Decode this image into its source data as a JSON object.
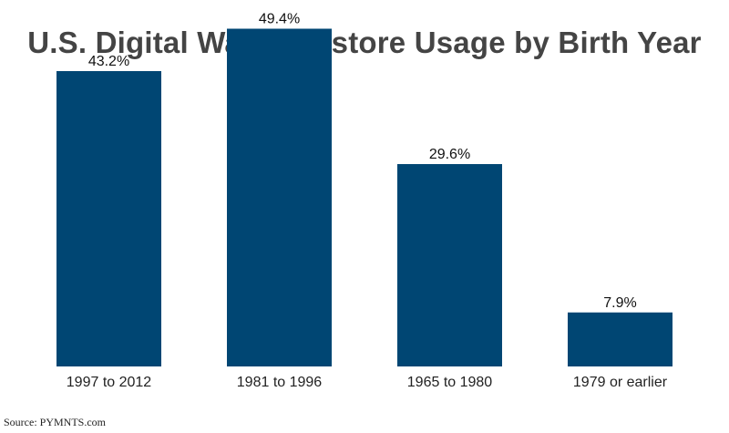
{
  "title": "U.S. Digital Wallet In-store Usage by Birth Year",
  "source": "Source: PYMNTS.com",
  "colors": {
    "bar": "#004673",
    "title": "#444444",
    "label": "#222222"
  },
  "chart_data": {
    "type": "bar",
    "title": "U.S. Digital Wallet In-store Usage by Birth Year",
    "xlabel": "",
    "ylabel": "",
    "categories": [
      "1997 to 2012",
      "1981 to 1996",
      "1965 to 1980",
      "1979 or earlier"
    ],
    "values": [
      43.2,
      49.4,
      29.6,
      7.9
    ],
    "value_labels": [
      "43.2%",
      "49.4%",
      "29.6%",
      "7.9%"
    ],
    "ylim": [
      0,
      50
    ],
    "grid": false,
    "legend": "none"
  }
}
